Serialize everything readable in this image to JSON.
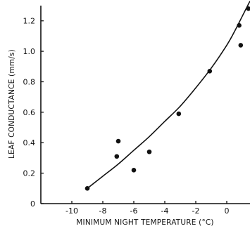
{
  "chart_data": {
    "type": "scatter",
    "xlabel": "MINIMUM NIGHT TEMPERATURE (°C)",
    "ylabel": "LEAF CONDUCTANCE (mm/s)",
    "xlim": [
      -12,
      1.5
    ],
    "ylim": [
      0,
      1.3
    ],
    "x_ticks": [
      -10,
      -8,
      -6,
      -4,
      -2,
      0
    ],
    "x_tick_labels": [
      "-10",
      "-8",
      "-6",
      "-4",
      "-2",
      "0"
    ],
    "y_ticks": [
      0,
      0.2,
      0.4,
      0.6,
      0.8,
      1.0,
      1.2
    ],
    "y_tick_labels": [
      "0",
      "0.2",
      "0.4",
      "0.6",
      "0.8",
      "1.0",
      "1.2"
    ],
    "points": [
      {
        "x": -9.0,
        "y": 0.1
      },
      {
        "x": -7.1,
        "y": 0.31
      },
      {
        "x": -7.0,
        "y": 0.41
      },
      {
        "x": -6.0,
        "y": 0.22
      },
      {
        "x": -5.0,
        "y": 0.34
      },
      {
        "x": -3.1,
        "y": 0.59
      },
      {
        "x": -1.1,
        "y": 0.87
      },
      {
        "x": 0.8,
        "y": 1.17
      },
      {
        "x": 0.9,
        "y": 1.04
      },
      {
        "x": 1.4,
        "y": 1.28
      }
    ],
    "fit_curve": [
      {
        "x": -9.0,
        "y": 0.1
      },
      {
        "x": -8.0,
        "y": 0.18
      },
      {
        "x": -7.0,
        "y": 0.26
      },
      {
        "x": -6.0,
        "y": 0.35
      },
      {
        "x": -5.0,
        "y": 0.44
      },
      {
        "x": -4.0,
        "y": 0.54
      },
      {
        "x": -3.0,
        "y": 0.64
      },
      {
        "x": -2.0,
        "y": 0.76
      },
      {
        "x": -1.0,
        "y": 0.89
      },
      {
        "x": 0.0,
        "y": 1.04
      },
      {
        "x": 0.5,
        "y": 1.13
      },
      {
        "x": 1.0,
        "y": 1.23
      },
      {
        "x": 1.5,
        "y": 1.33
      }
    ],
    "grid": false,
    "legend": "none"
  }
}
